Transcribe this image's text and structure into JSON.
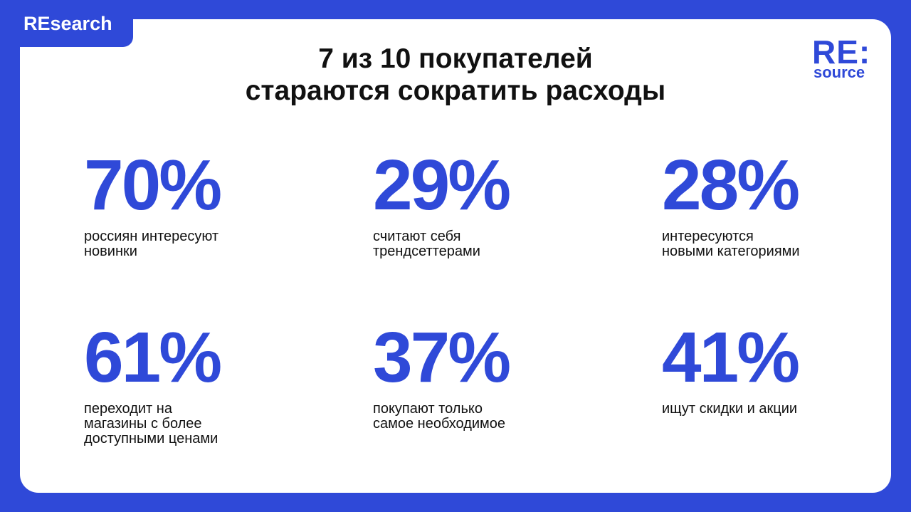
{
  "tag": "REsearch",
  "title": [
    "7 из 10 покупателей",
    "стараются сократить расходы"
  ],
  "logo": {
    "main": "RE:",
    "sub": "source"
  },
  "stats": [
    {
      "value": "70%",
      "label": [
        "россиян интересуют",
        "новинки"
      ]
    },
    {
      "value": "29%",
      "label": [
        "считают себя",
        "трендсеттерами"
      ]
    },
    {
      "value": "28%",
      "label": [
        "интересуются",
        "новыми категориями"
      ]
    },
    {
      "value": "61%",
      "label": [
        "переходит на",
        "магазины с более",
        "доступными ценами"
      ]
    },
    {
      "value": "37%",
      "label": [
        "покупают только",
        "самое необходимое"
      ]
    },
    {
      "value": "41%",
      "label": [
        "ищут скидки и акции"
      ]
    }
  ]
}
